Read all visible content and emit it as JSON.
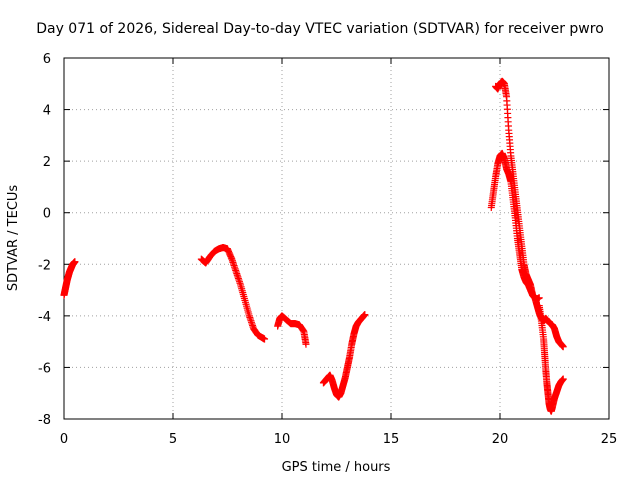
{
  "chart_data": {
    "type": "scatter",
    "title": "Day 071 of 2026, Sidereal Day-to-day VTEC variation (SDTVAR) for receiver pwro",
    "xlabel": "GPS time / hours",
    "ylabel": "SDTVAR / TECUs",
    "xlim": [
      0,
      25
    ],
    "ylim": [
      -8,
      6
    ],
    "x_ticks": [
      0,
      5,
      10,
      15,
      20,
      25
    ],
    "y_ticks": [
      -8,
      -6,
      -4,
      -2,
      0,
      2,
      4,
      6
    ],
    "grid": true,
    "marker": "+",
    "color": "#ff0000",
    "segments": [
      {
        "x": [
          0.0,
          0.05,
          0.1,
          0.15,
          0.2,
          0.25,
          0.3,
          0.35,
          0.4,
          0.45,
          0.5
        ],
        "y": [
          -3.2,
          -3.0,
          -2.8,
          -2.6,
          -2.45,
          -2.3,
          -2.2,
          -2.1,
          -2.0,
          -1.95,
          -1.9
        ]
      },
      {
        "x": [
          6.3,
          6.5,
          6.7,
          6.9,
          7.1,
          7.3,
          7.5,
          7.7,
          7.9,
          8.1,
          8.3,
          8.5,
          8.7,
          8.9,
          9.1,
          9.2
        ],
        "y": [
          -1.8,
          -1.95,
          -1.7,
          -1.5,
          -1.4,
          -1.35,
          -1.4,
          -1.8,
          -2.3,
          -2.8,
          -3.4,
          -4.0,
          -4.5,
          -4.75,
          -4.85,
          -4.9
        ]
      },
      {
        "x": [
          9.8,
          9.9,
          10.0,
          10.2,
          10.4,
          10.6,
          10.8,
          11.0,
          11.1
        ],
        "y": [
          -4.4,
          -4.1,
          -4.0,
          -4.15,
          -4.3,
          -4.3,
          -4.35,
          -4.6,
          -5.1
        ]
      },
      {
        "x": [
          11.9,
          12.0,
          12.1,
          12.2,
          12.3,
          12.4,
          12.5,
          12.6,
          12.7,
          12.8,
          12.9,
          13.0,
          13.1,
          13.2,
          13.3,
          13.4,
          13.5,
          13.6,
          13.7,
          13.8
        ],
        "y": [
          -6.6,
          -6.5,
          -6.4,
          -6.3,
          -6.5,
          -6.8,
          -7.05,
          -7.15,
          -7.0,
          -6.7,
          -6.4,
          -6.0,
          -5.6,
          -5.1,
          -4.7,
          -4.4,
          -4.25,
          -4.15,
          -4.05,
          -3.95
        ]
      },
      {
        "x": [
          19.6,
          19.7,
          19.8,
          19.9,
          20.0,
          20.1,
          20.2,
          20.3,
          20.4,
          20.5,
          20.6,
          20.7,
          20.8,
          20.9,
          21.0,
          21.1,
          21.2,
          21.3,
          21.4,
          21.5,
          21.6,
          21.7,
          21.8
        ],
        "y": [
          0.2,
          0.8,
          1.4,
          1.9,
          2.2,
          2.3,
          2.1,
          1.7,
          1.5,
          1.2,
          0.5,
          -0.2,
          -1.0,
          -1.6,
          -2.2,
          -2.5,
          -2.7,
          -2.8,
          -3.0,
          -3.2,
          -3.3,
          -3.35,
          -3.3
        ]
      },
      {
        "x": [
          19.8,
          19.9,
          20.0,
          20.1,
          20.2,
          20.3,
          20.4,
          20.5,
          20.6,
          20.7,
          20.8,
          20.9,
          21.0,
          21.1,
          21.2,
          21.3,
          21.4,
          21.5,
          21.6,
          21.7,
          21.8,
          21.9,
          22.0,
          22.1,
          22.2,
          22.3,
          22.4,
          22.5,
          22.6,
          22.7,
          22.8,
          22.9
        ],
        "y": [
          4.9,
          4.8,
          5.0,
          5.1,
          5.0,
          4.5,
          3.2,
          2.2,
          1.5,
          0.8,
          0.1,
          -0.6,
          -1.3,
          -2.0,
          -2.4,
          -2.6,
          -2.8,
          -3.2,
          -3.3,
          -3.6,
          -3.9,
          -4.1,
          -4.2,
          -4.1,
          -4.2,
          -4.3,
          -4.35,
          -4.5,
          -4.8,
          -5.0,
          -5.1,
          -5.2
        ]
      },
      {
        "x": [
          21.8,
          21.9,
          22.0,
          22.05,
          22.1,
          22.15,
          22.2,
          22.25,
          22.3,
          22.35,
          22.4,
          22.5,
          22.6,
          22.7,
          22.8,
          22.9
        ],
        "y": [
          -3.6,
          -4.2,
          -4.9,
          -5.5,
          -6.1,
          -6.6,
          -7.0,
          -7.4,
          -7.6,
          -7.7,
          -7.55,
          -7.2,
          -6.95,
          -6.7,
          -6.55,
          -6.45
        ]
      }
    ]
  }
}
